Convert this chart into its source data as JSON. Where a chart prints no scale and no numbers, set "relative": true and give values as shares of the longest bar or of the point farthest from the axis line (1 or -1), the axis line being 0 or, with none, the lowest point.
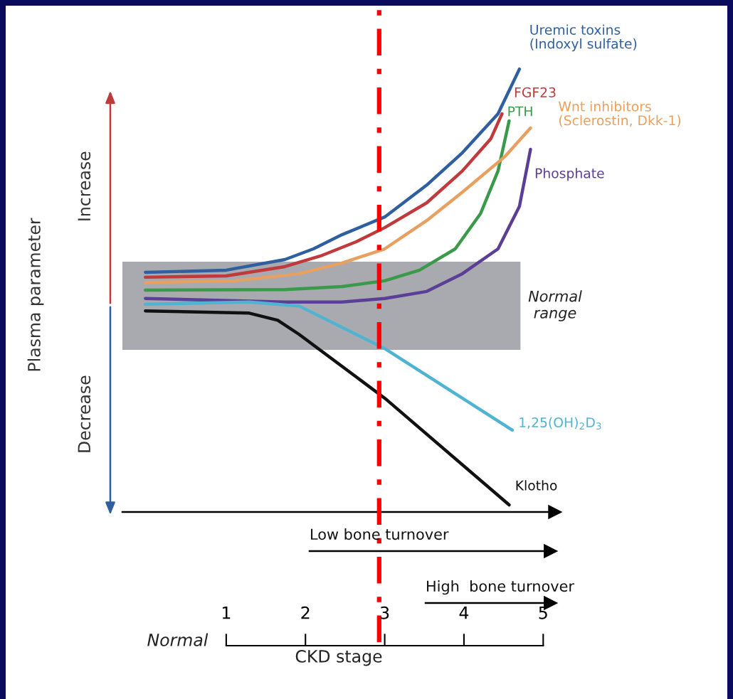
{
  "chart_data": {
    "type": "line",
    "relative": true,
    "xlabel": "CKD stage",
    "xlim": [
      -0.31,
      5.15
    ],
    "xticks": [
      1,
      2,
      3,
      4,
      5
    ],
    "annotations": [
      "Increase",
      "Decrease",
      "Normal",
      "Plasma parameter",
      "Low bone turnover",
      "High  bone turnover"
    ],
    "bands": [
      {
        "axis": "y",
        "from": 0.366,
        "to": 0.565,
        "label": "Normal range",
        "color": "#a9aab0"
      }
    ],
    "ref_lines": [
      {
        "axis": "x",
        "value": 2.93,
        "color": "#ff0000",
        "line_style": "dashdot"
      }
    ],
    "series": [
      {
        "name": "Uremic toxins\n(Indoxyl sulfate)",
        "color": "#2f5f9e",
        "x": [
          -0.02,
          1,
          1.74,
          2.1,
          2.46,
          3.0,
          3.53,
          3.98,
          4.43,
          4.7
        ],
        "values": [
          0.541,
          0.546,
          0.57,
          0.594,
          0.626,
          0.666,
          0.738,
          0.811,
          0.899,
          1.0
        ]
      },
      {
        "name": "FGF23",
        "color": "#c0393b",
        "x": [
          -0.02,
          1,
          1.74,
          2.19,
          2.64,
          3.0,
          3.53,
          3.98,
          4.34,
          4.48
        ],
        "values": [
          0.53,
          0.533,
          0.554,
          0.578,
          0.61,
          0.642,
          0.698,
          0.77,
          0.843,
          0.899
        ]
      },
      {
        "name": "PTH",
        "color": "#3a9a4a",
        "x": [
          -0.02,
          1.74,
          2.46,
          3.0,
          3.44,
          3.89,
          4.21,
          4.43,
          4.57
        ],
        "values": [
          0.501,
          0.502,
          0.509,
          0.522,
          0.546,
          0.594,
          0.674,
          0.77,
          0.883
        ]
      },
      {
        "name": "Wnt inhibitors\n(Sclerostin, Dkk-1)",
        "color": "#e8a060",
        "x": [
          -0.02,
          1.11,
          1.92,
          2.46,
          3.0,
          3.53,
          3.98,
          4.52,
          4.84
        ],
        "values": [
          0.518,
          0.522,
          0.538,
          0.562,
          0.594,
          0.658,
          0.722,
          0.803,
          0.867
        ]
      },
      {
        "name": "Phosphate",
        "color": "#5b3e96",
        "x": [
          -0.02,
          1.74,
          2.46,
          3.0,
          3.53,
          3.98,
          4.43,
          4.7,
          4.84
        ],
        "values": [
          0.482,
          0.474,
          0.474,
          0.482,
          0.498,
          0.538,
          0.594,
          0.69,
          0.819
        ]
      },
      {
        "name": "1,25(OH)$_{2}$D$_{3}$",
        "color": "#4fb3d1",
        "x": [
          -0.02,
          1.29,
          1.92,
          2.46,
          3.0,
          4.61
        ],
        "values": [
          0.469,
          0.474,
          0.465,
          0.417,
          0.369,
          0.185
        ]
      },
      {
        "name": "Klotho",
        "color": "#111111",
        "x": [
          -0.02,
          1.29,
          1.65,
          1.92,
          2.64,
          3.0,
          4.57
        ],
        "values": [
          0.454,
          0.449,
          0.433,
          0.401,
          0.305,
          0.257,
          0.016
        ]
      }
    ]
  }
}
